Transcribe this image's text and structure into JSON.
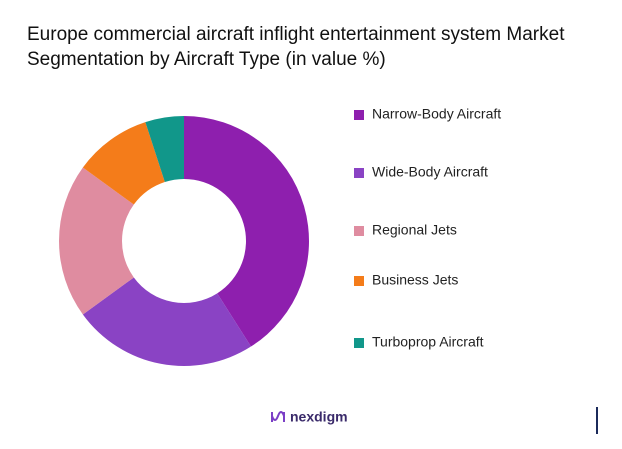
{
  "chart_data": {
    "type": "donut",
    "title": "Europe commercial aircraft inflight entertainment system Market Segmentation by Aircraft Type (in value %)",
    "categories": [
      "Narrow-Body Aircraft",
      "Wide-Body Aircraft",
      "Regional Jets",
      "Business Jets",
      "Turboprop Aircraft"
    ],
    "values": [
      41,
      24,
      20,
      10,
      5
    ],
    "colors": [
      "#8e1fae",
      "#8a43c4",
      "#df8ca0",
      "#f47c1a",
      "#11978a"
    ],
    "legend": "right"
  },
  "footer": {
    "logo": "nexdigm"
  }
}
